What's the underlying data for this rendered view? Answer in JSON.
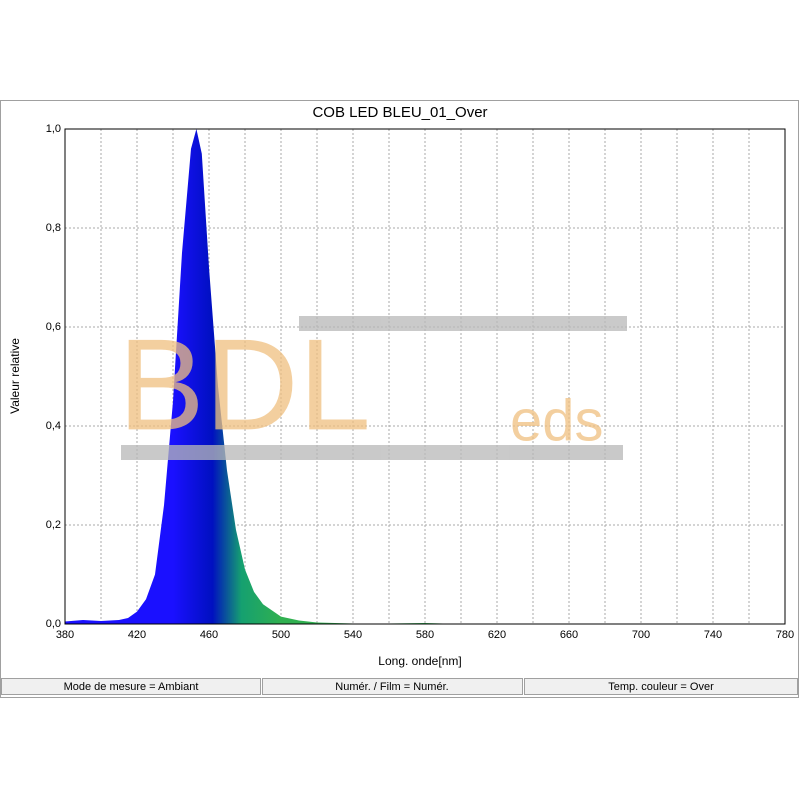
{
  "chart_data": {
    "type": "area",
    "title": "COB LED BLEU_01_Over",
    "xlabel": "Long. onde[nm]",
    "ylabel": "Valeur relative",
    "x": [
      380,
      390,
      400,
      410,
      415,
      420,
      425,
      430,
      435,
      440,
      445,
      450,
      453,
      456,
      460,
      465,
      470,
      475,
      480,
      485,
      490,
      500,
      510,
      520,
      540,
      560,
      580,
      600,
      650,
      700,
      780
    ],
    "values": [
      0.005,
      0.008,
      0.006,
      0.008,
      0.012,
      0.025,
      0.05,
      0.1,
      0.24,
      0.45,
      0.75,
      0.96,
      1.0,
      0.95,
      0.72,
      0.48,
      0.31,
      0.19,
      0.11,
      0.065,
      0.04,
      0.015,
      0.007,
      0.003,
      0.001,
      0.001,
      0.002,
      0.0,
      0.0,
      0.0,
      0.0
    ],
    "color_stops": [
      {
        "x": 440,
        "color": "#1a10ff"
      },
      {
        "x": 462,
        "color": "#0010c0"
      },
      {
        "x": 478,
        "color": "#15a070"
      },
      {
        "x": 500,
        "color": "#30b050"
      }
    ],
    "xlim": [
      380,
      780
    ],
    "xticks": [
      380,
      420,
      460,
      500,
      540,
      580,
      620,
      660,
      700,
      740,
      780
    ],
    "x_minor_ticks": [
      400,
      440,
      480,
      520,
      560,
      600,
      640,
      680,
      720,
      760
    ],
    "ylim": [
      0,
      1
    ],
    "yticks": [
      {
        "value": 0,
        "label": "0,0"
      },
      {
        "value": 0.2,
        "label": "0,2"
      },
      {
        "value": 0.4,
        "label": "0,4"
      },
      {
        "value": 0.6,
        "label": "0,6"
      },
      {
        "value": 0.8,
        "label": "0,8"
      },
      {
        "value": 1,
        "label": "1,0"
      }
    ],
    "grid": true
  },
  "watermark": {
    "main": "BDL",
    "suffix": "eds"
  },
  "status_bar": [
    "Mode de mesure = Ambiant",
    "Numér. / Film = Numér.",
    "Temp. couleur = Over"
  ]
}
